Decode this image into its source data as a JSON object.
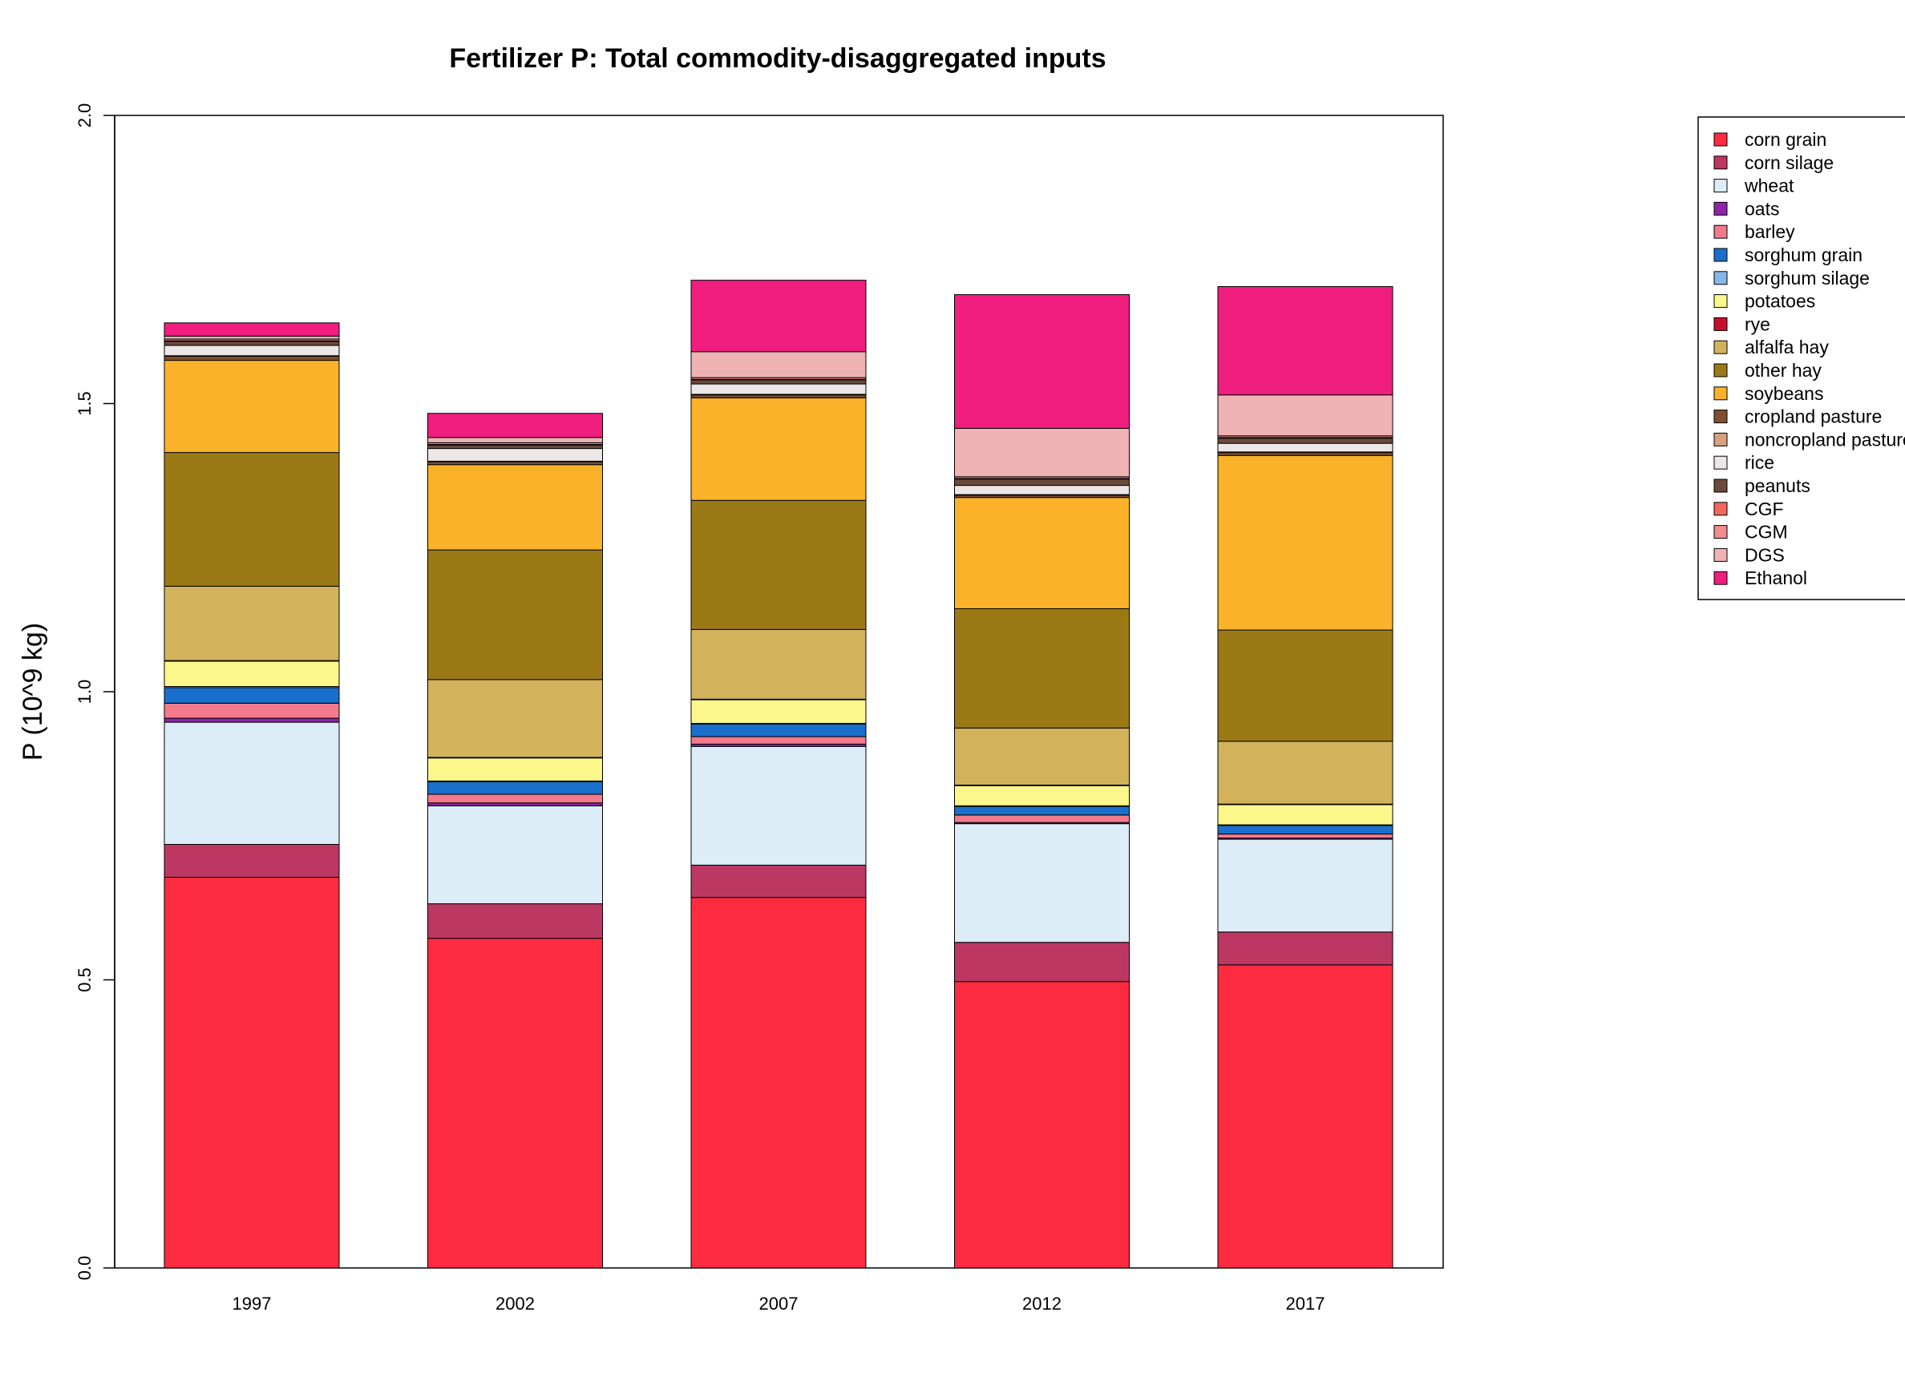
{
  "chart_data": {
    "type": "bar",
    "stacked": true,
    "title": "Fertilizer P: Total commodity-disaggregated inputs",
    "xlabel": "",
    "ylabel": "P (10^9 kg)",
    "ylim": [
      0,
      2.0
    ],
    "yticks": [
      "0.0",
      "0.5",
      "1.0",
      "1.5",
      "2.0"
    ],
    "categories": [
      "1997",
      "2002",
      "2007",
      "2012",
      "2017"
    ],
    "legend_position": "right",
    "grid": false,
    "series": [
      {
        "name": "corn grain",
        "color": "#FC2B40",
        "values": [
          0.678,
          0.572,
          0.643,
          0.497,
          0.526
        ]
      },
      {
        "name": "corn silage",
        "color": "#BC3862",
        "values": [
          0.057,
          0.06,
          0.056,
          0.068,
          0.057
        ]
      },
      {
        "name": "wheat",
        "color": "#DCEDF8",
        "values": [
          0.212,
          0.17,
          0.206,
          0.206,
          0.161
        ]
      },
      {
        "name": "oats",
        "color": "#8E24AA",
        "values": [
          0.007,
          0.005,
          0.004,
          0.002,
          0.002
        ]
      },
      {
        "name": "barley",
        "color": "#F27A8B",
        "values": [
          0.026,
          0.015,
          0.013,
          0.013,
          0.007
        ]
      },
      {
        "name": "sorghum grain",
        "color": "#1A6FCC",
        "values": [
          0.027,
          0.022,
          0.022,
          0.015,
          0.015
        ]
      },
      {
        "name": "sorghum silage",
        "color": "#85B8E8",
        "values": [
          0.002,
          0.001,
          0.001,
          0.001,
          0.001
        ]
      },
      {
        "name": "potatoes",
        "color": "#FBF78A",
        "values": [
          0.044,
          0.04,
          0.041,
          0.035,
          0.035
        ]
      },
      {
        "name": "rye",
        "color": "#C8102E",
        "values": [
          0.001,
          0.001,
          0.001,
          0.001,
          0.001
        ]
      },
      {
        "name": "alfalfa hay",
        "color": "#D2B35C",
        "values": [
          0.129,
          0.135,
          0.121,
          0.099,
          0.109
        ]
      },
      {
        "name": "other hay",
        "color": "#9B7A16",
        "values": [
          0.232,
          0.225,
          0.224,
          0.207,
          0.193
        ]
      },
      {
        "name": "soybeans",
        "color": "#F9B229",
        "values": [
          0.16,
          0.148,
          0.178,
          0.193,
          0.303
        ]
      },
      {
        "name": "cropland pasture",
        "color": "#7F4F2E",
        "values": [
          0.007,
          0.005,
          0.005,
          0.004,
          0.005
        ]
      },
      {
        "name": "noncropland pasture",
        "color": "#D6A27F",
        "values": [
          0.001,
          0.001,
          0.001,
          0.001,
          0.001
        ]
      },
      {
        "name": "rice",
        "color": "#ECE7E6",
        "values": [
          0.018,
          0.022,
          0.018,
          0.016,
          0.015
        ]
      },
      {
        "name": "peanuts",
        "color": "#6A4A3A",
        "values": [
          0.007,
          0.006,
          0.007,
          0.011,
          0.009
        ]
      },
      {
        "name": "CGF",
        "color": "#F2685E",
        "values": [
          0.001,
          0.001,
          0.001,
          0.001,
          0.001
        ]
      },
      {
        "name": "CGM",
        "color": "#F28C8E",
        "values": [
          0.003,
          0.003,
          0.003,
          0.003,
          0.003
        ]
      },
      {
        "name": "DGS",
        "color": "#EFB3B3",
        "values": [
          0.005,
          0.009,
          0.045,
          0.084,
          0.071
        ]
      },
      {
        "name": "Ethanol",
        "color": "#F01E7F",
        "values": [
          0.023,
          0.042,
          0.124,
          0.232,
          0.188
        ]
      }
    ]
  }
}
